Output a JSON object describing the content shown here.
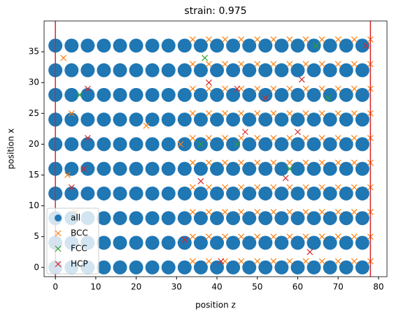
{
  "chart_data": {
    "type": "scatter",
    "title": "strain: 0.975",
    "xlabel": "position z",
    "ylabel": "position x",
    "xlim": [
      -2.8,
      82.1
    ],
    "ylim": [
      -1.5,
      40
    ],
    "xticks": [
      0,
      10,
      20,
      30,
      40,
      50,
      60,
      70,
      80
    ],
    "yticks": [
      0,
      5,
      10,
      15,
      20,
      25,
      30,
      35
    ],
    "vlines": [
      0,
      78
    ],
    "vline_color": "#d62728",
    "legend": "lower left",
    "series": [
      {
        "name": "all",
        "color": "#1f77b4",
        "marker": "o",
        "x": [
          0,
          4,
          8,
          12,
          16,
          20,
          24,
          28,
          32,
          36,
          40,
          44,
          48,
          52,
          56,
          60,
          64,
          68,
          72,
          76,
          0,
          4,
          8,
          12,
          16,
          20,
          24,
          28,
          32,
          36,
          40,
          44,
          48,
          52,
          56,
          60,
          64,
          68,
          72,
          76,
          0,
          4,
          8,
          12,
          16,
          20,
          24,
          28,
          32,
          36,
          40,
          44,
          48,
          52,
          56,
          60,
          64,
          68,
          72,
          76,
          0,
          4,
          8,
          12,
          16,
          20,
          24,
          28,
          32,
          36,
          40,
          44,
          48,
          52,
          56,
          60,
          64,
          68,
          72,
          76,
          0,
          4,
          8,
          12,
          16,
          20,
          24,
          28,
          32,
          36,
          40,
          44,
          48,
          52,
          56,
          60,
          64,
          68,
          72,
          76,
          0,
          4,
          8,
          12,
          16,
          20,
          24,
          28,
          32,
          36,
          40,
          44,
          48,
          52,
          56,
          60,
          64,
          68,
          72,
          76,
          0,
          4,
          8,
          12,
          16,
          20,
          24,
          28,
          32,
          36,
          40,
          44,
          48,
          52,
          56,
          60,
          64,
          68,
          72,
          76,
          0,
          4,
          8,
          12,
          16,
          20,
          24,
          28,
          32,
          36,
          40,
          44,
          48,
          52,
          56,
          60,
          64,
          68,
          72,
          76,
          0,
          4,
          8,
          12,
          16,
          20,
          24,
          28,
          32,
          36,
          40,
          44,
          48,
          52,
          56,
          60,
          64,
          68,
          72,
          76,
          0,
          4,
          8,
          12,
          16,
          20,
          24,
          28,
          32,
          36,
          40,
          44,
          48,
          52,
          56,
          60,
          64,
          68,
          72,
          76
        ],
        "values": [
          0,
          0,
          0,
          0,
          0,
          0,
          0,
          0,
          0,
          0,
          0,
          0,
          0,
          0,
          0,
          0,
          0,
          0,
          0,
          0,
          4,
          4,
          4,
          4,
          4,
          4,
          4,
          4,
          4,
          4,
          4,
          4,
          4,
          4,
          4,
          4,
          4,
          4,
          4,
          4,
          8,
          8,
          8,
          8,
          8,
          8,
          8,
          8,
          8,
          8,
          8,
          8,
          8,
          8,
          8,
          8,
          8,
          8,
          8,
          8,
          12,
          12,
          12,
          12,
          12,
          12,
          12,
          12,
          12,
          12,
          12,
          12,
          12,
          12,
          12,
          12,
          12,
          12,
          12,
          12,
          16,
          16,
          16,
          16,
          16,
          16,
          16,
          16,
          16,
          16,
          16,
          16,
          16,
          16,
          16,
          16,
          16,
          16,
          16,
          16,
          20,
          20,
          20,
          20,
          20,
          20,
          20,
          20,
          20,
          20,
          20,
          20,
          20,
          20,
          20,
          20,
          20,
          20,
          20,
          20,
          24,
          24,
          24,
          24,
          24,
          24,
          24,
          24,
          24,
          24,
          24,
          24,
          24,
          24,
          24,
          24,
          24,
          24,
          24,
          24,
          28,
          28,
          28,
          28,
          28,
          28,
          28,
          28,
          28,
          28,
          28,
          28,
          28,
          28,
          28,
          28,
          28,
          28,
          28,
          28,
          32,
          32,
          32,
          32,
          32,
          32,
          32,
          32,
          32,
          32,
          32,
          32,
          32,
          32,
          32,
          32,
          32,
          32,
          32,
          32,
          36,
          36,
          36,
          36,
          36,
          36,
          36,
          36,
          36,
          36,
          36,
          36,
          36,
          36,
          36,
          36,
          36,
          36,
          36,
          36
        ]
      },
      {
        "name": "BCC",
        "color": "#ff7f0e",
        "marker": "x",
        "x": [
          34,
          38,
          42,
          46,
          50,
          54,
          58,
          62,
          66,
          70,
          74,
          78,
          34,
          38,
          42,
          46,
          50,
          54,
          58,
          62,
          66,
          70,
          74,
          78,
          34,
          38,
          42,
          46,
          50,
          54,
          58,
          62,
          66,
          70,
          74,
          78,
          34,
          38,
          42,
          46,
          50,
          54,
          58,
          62,
          66,
          70,
          74,
          78,
          34,
          38,
          42,
          46,
          50,
          54,
          58,
          62,
          66,
          70,
          74,
          78,
          34,
          38,
          42,
          46,
          50,
          54,
          58,
          62,
          66,
          70,
          74,
          78,
          34,
          38,
          42,
          46,
          50,
          54,
          58,
          62,
          66,
          70,
          74,
          78,
          34,
          38,
          42,
          46,
          50,
          54,
          58,
          62,
          66,
          70,
          74,
          78,
          34,
          38,
          42,
          46,
          50,
          54,
          58,
          62,
          66,
          70,
          74,
          78,
          34,
          38,
          42,
          46,
          50,
          54,
          58,
          62,
          66,
          70,
          74,
          78,
          2,
          4,
          22.5,
          31,
          3,
          5
        ],
        "values": [
          1,
          1,
          1,
          1,
          1,
          1,
          1,
          1,
          1,
          1,
          1,
          1,
          5,
          5,
          5,
          5,
          5,
          5,
          5,
          5,
          5,
          5,
          5,
          5,
          9,
          9,
          9,
          9,
          9,
          9,
          9,
          9,
          9,
          9,
          9,
          9,
          13,
          13,
          13,
          13,
          13,
          13,
          13,
          13,
          13,
          13,
          13,
          13,
          17,
          17,
          17,
          17,
          17,
          17,
          17,
          17,
          17,
          17,
          17,
          17,
          21,
          21,
          21,
          21,
          21,
          21,
          21,
          21,
          21,
          21,
          21,
          21,
          25,
          25,
          25,
          25,
          25,
          25,
          25,
          25,
          25,
          25,
          25,
          25,
          29,
          29,
          29,
          29,
          29,
          29,
          29,
          29,
          29,
          29,
          29,
          29,
          33,
          33,
          33,
          33,
          33,
          33,
          33,
          33,
          33,
          33,
          33,
          33,
          37,
          37,
          37,
          37,
          37,
          37,
          37,
          37,
          37,
          37,
          37,
          37,
          34,
          25,
          23,
          20,
          15,
          9
        ]
      },
      {
        "name": "FCC",
        "color": "#2ca02c",
        "marker": "x",
        "x": [
          6,
          36,
          45,
          58,
          64.5,
          67.5,
          37
        ],
        "values": [
          28,
          20,
          20,
          16,
          36,
          27.5,
          34
        ]
      },
      {
        "name": "HCP",
        "color": "#d62728",
        "marker": "x",
        "x": [
          8,
          8,
          7,
          4,
          32,
          36,
          38,
          45,
          52,
          57,
          61,
          60,
          63,
          41,
          47,
          77
        ],
        "values": [
          29,
          21,
          16,
          13,
          4.5,
          14,
          30,
          29,
          27.5,
          14.5,
          30.5,
          22,
          2.5,
          1,
          22,
          36
        ]
      }
    ]
  }
}
